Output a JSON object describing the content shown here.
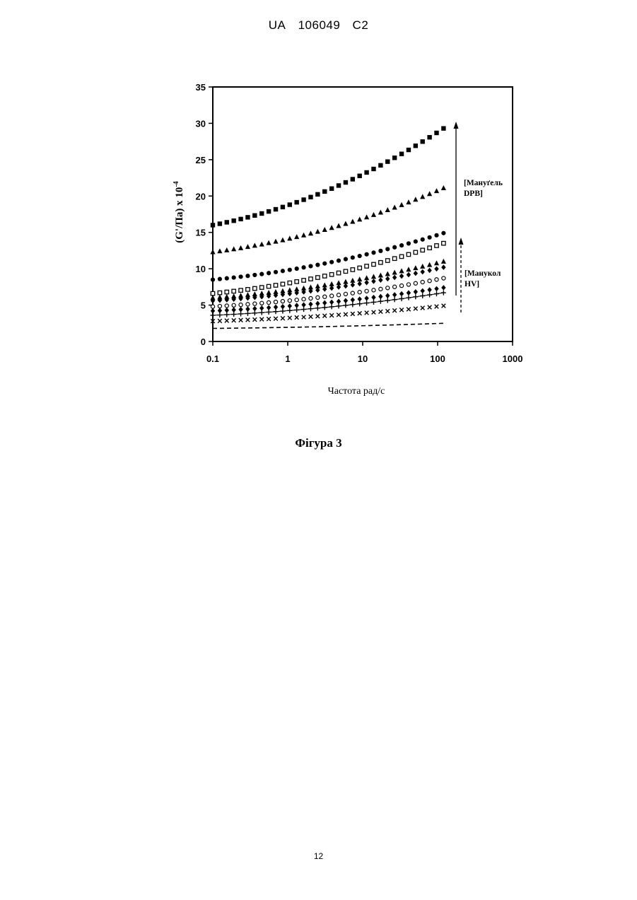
{
  "header": {
    "country": "UA",
    "number": "106049",
    "kind": "C2"
  },
  "caption": "Фігура 3",
  "page_number": "12",
  "chart_data": {
    "type": "scatter",
    "xlabel": "Частота рад/с",
    "ylabel_main": "(G'/Па) x 10",
    "ylabel_exp": "-4",
    "xscale": "log",
    "xlim": [
      0.1,
      1000
    ],
    "ylim": [
      0,
      35
    ],
    "xticks": [
      0.1,
      1,
      10,
      100,
      1000
    ],
    "xtick_labels": [
      "0.1",
      "1",
      "10",
      "100",
      "1000"
    ],
    "yticks": [
      0,
      5,
      10,
      15,
      20,
      25,
      30,
      35
    ],
    "ytick_labels": [
      "0",
      "5",
      "10",
      "15",
      "20",
      "25",
      "30",
      "35"
    ],
    "grid": false,
    "annotations": [
      {
        "text_lines": [
          "[Мануґель",
          "DPB]"
        ],
        "arrow": "solid"
      },
      {
        "text_lines": [
          "[Манукол",
          "HV]"
        ],
        "arrow": "dashed"
      }
    ],
    "series": [
      {
        "marker": "filled-square",
        "start": 16.0,
        "end": 29.3
      },
      {
        "marker": "filled-triangle",
        "start": 12.3,
        "end": 21.1
      },
      {
        "marker": "filled-circle",
        "start": 8.5,
        "end": 14.9
      },
      {
        "marker": "open-square",
        "start": 6.6,
        "end": 13.5
      },
      {
        "marker": "filled-triangle",
        "start": 6.0,
        "end": 11.0
      },
      {
        "marker": "filled-diamond",
        "start": 5.6,
        "end": 10.2
      },
      {
        "marker": "open-circle",
        "start": 4.8,
        "end": 8.7
      },
      {
        "marker": "filled-diamond",
        "start": 4.2,
        "end": 7.4
      },
      {
        "marker": "plus",
        "start": 3.6,
        "end": 6.7
      },
      {
        "marker": "cross",
        "start": 2.8,
        "end": 4.9
      },
      {
        "marker": "dashed-line",
        "start": 1.8,
        "end": 2.5
      }
    ]
  }
}
